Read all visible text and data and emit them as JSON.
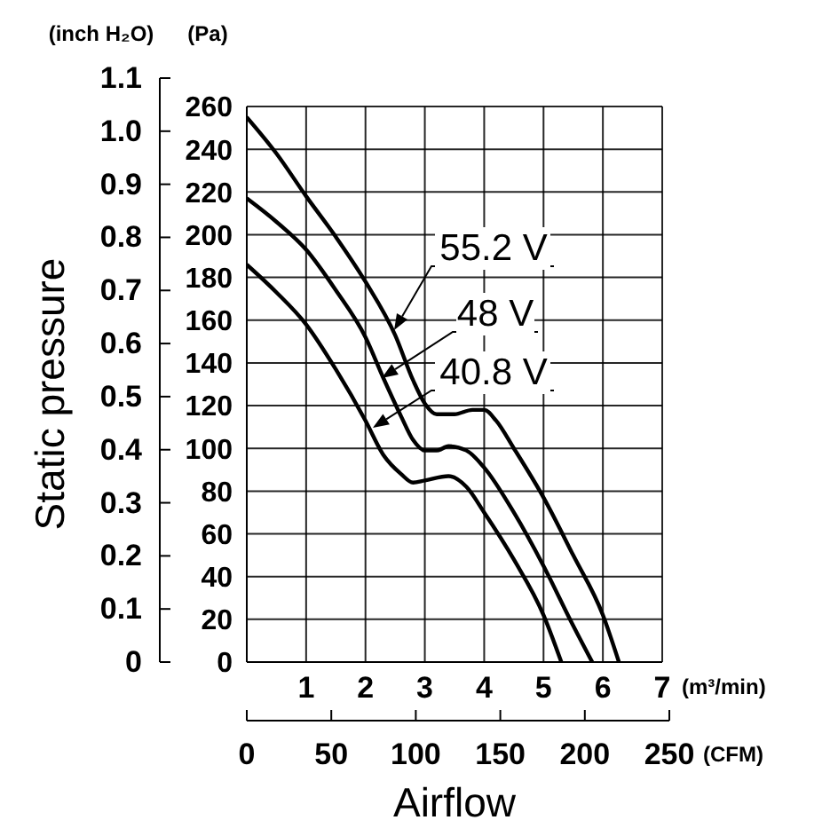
{
  "chart_data": {
    "type": "line",
    "xlabel": "Airflow",
    "y2label": "Static pressure",
    "xlim": [
      0,
      7
    ],
    "xticks": [
      1,
      2,
      3,
      4,
      5,
      6,
      7
    ],
    "x2lim": [
      0,
      250
    ],
    "x2ticks": [
      0,
      50,
      100,
      150,
      200,
      250
    ],
    "ylim": [
      0,
      260
    ],
    "yticks": [
      0,
      20,
      40,
      60,
      80,
      100,
      120,
      140,
      160,
      180,
      200,
      220,
      240,
      260
    ],
    "y2lim": [
      0,
      1.1
    ],
    "y2ticks": [
      0,
      0.1,
      0.2,
      0.3,
      0.4,
      0.5,
      0.6,
      0.7,
      0.8,
      0.9,
      {
        "value": 1,
        "label": "1.0"
      },
      1.1
    ],
    "grid": true,
    "legend": "top",
    "marker": "none",
    "line_style": "solid",
    "annotations": [
      "(inch H₂O)",
      "(Pa)",
      "(m³/min)",
      "(CFM)"
    ],
    "series": [
      {
        "name": "55.2 V",
        "color": "#000000",
        "x": [
          0,
          0.5,
          1,
          1.5,
          2,
          2.5,
          2.8,
          3,
          3.2,
          3.5,
          3.8,
          4,
          4.2,
          4.5,
          5,
          5.5,
          6,
          6.27
        ],
        "values": [
          255,
          238,
          218,
          199,
          178,
          153,
          132,
          121,
          116,
          116,
          118,
          118,
          113,
          100,
          77,
          50,
          22,
          0
        ]
      },
      {
        "name": "48 V",
        "color": "#000000",
        "x": [
          0,
          0.5,
          1,
          1.5,
          2,
          2.3,
          2.6,
          2.8,
          3,
          3.2,
          3.4,
          3.7,
          4,
          4.5,
          5,
          5.5,
          5.82
        ],
        "values": [
          217,
          206,
          193,
          174,
          152,
          133,
          115,
          104,
          99,
          99,
          101,
          99,
          91,
          70,
          45,
          17,
          0
        ]
      },
      {
        "name": "40.8 V",
        "color": "#000000",
        "x": [
          0,
          0.5,
          1,
          1.5,
          2,
          2.3,
          2.6,
          2.8,
          3,
          3.4,
          3.7,
          4,
          4.5,
          5,
          5.3
        ],
        "values": [
          186,
          173,
          158,
          137,
          113,
          97,
          88,
          84,
          85,
          87,
          82,
          70,
          48,
          22,
          0
        ]
      }
    ]
  }
}
